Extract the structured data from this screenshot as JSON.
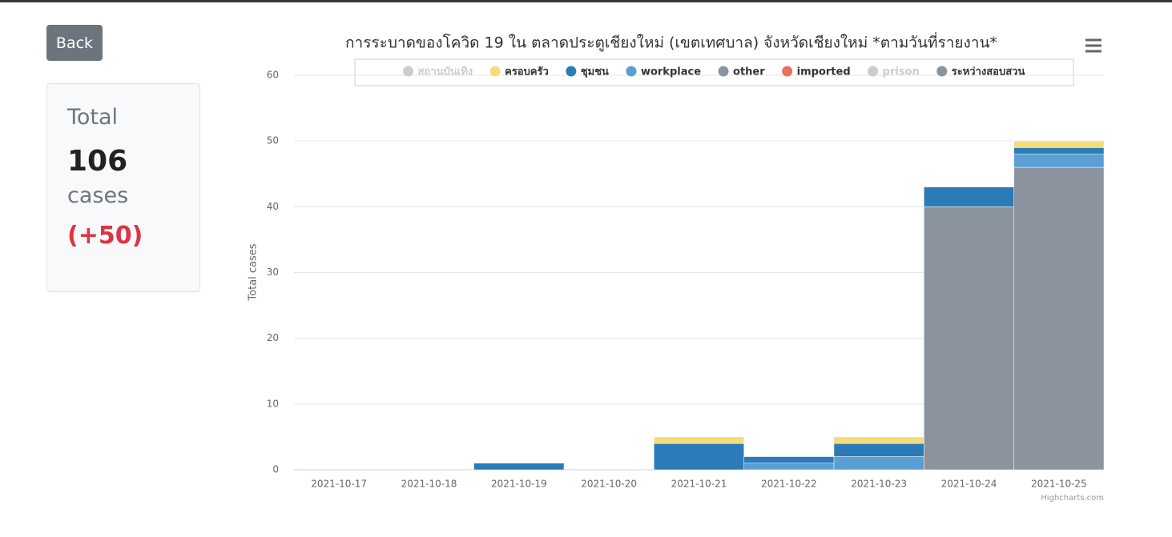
{
  "sidebar": {
    "button": "Back",
    "total_label": "Total",
    "total": "106",
    "unit": "cases",
    "change": "(+50)"
  },
  "chart_data": {
    "type": "stacked-bar",
    "title": "การระบาดของโควิด 19 ใน ตลาดประตูเชียงใหม่ (เขตเทศบาล) จังหวัดเชียงใหม่ *ตามวันที่รายงาน*",
    "y_label": "Total cases",
    "credits": "Highcharts.com",
    "categories": [
      "2021-10-17",
      "2021-10-18",
      "2021-10-19",
      "2021-10-20",
      "2021-10-21",
      "2021-10-22",
      "2021-10-23",
      "2021-10-24",
      "2021-10-25"
    ],
    "series": [
      {
        "name": "สถานบันเทิง",
        "color": "#cccccc",
        "visible": false,
        "values": [
          0,
          0,
          0,
          0,
          0,
          0,
          0,
          0,
          0
        ]
      },
      {
        "name": "ครอบครัว",
        "color": "#f3dc7a",
        "visible": true,
        "values": [
          0,
          0,
          0,
          0,
          1,
          0,
          1,
          0,
          1
        ]
      },
      {
        "name": "ชุมชน",
        "color": "#2b7bb9",
        "visible": true,
        "values": [
          0,
          0,
          1,
          0,
          4,
          1,
          2,
          3,
          1
        ]
      },
      {
        "name": "workplace",
        "color": "#5a9fd4",
        "visible": true,
        "values": [
          0,
          0,
          0,
          0,
          0,
          1,
          2,
          0,
          2
        ]
      },
      {
        "name": "other",
        "color": "#8a939e",
        "visible": true,
        "values": [
          0,
          0,
          0,
          0,
          0,
          0,
          0,
          0,
          0
        ]
      },
      {
        "name": "imported",
        "color": "#e8705f",
        "visible": true,
        "values": [
          0,
          0,
          0,
          0,
          0,
          0,
          0,
          0,
          0
        ]
      },
      {
        "name": "prison",
        "color": "#cccccc",
        "visible": false,
        "values": [
          0,
          0,
          0,
          0,
          0,
          0,
          0,
          0,
          0
        ]
      },
      {
        "name": "ระหว่างสอบสวน",
        "color": "#8a939e",
        "visible": true,
        "values": [
          0,
          0,
          0,
          0,
          0,
          0,
          0,
          40,
          46
        ]
      }
    ],
    "ylim": [
      0,
      60
    ],
    "yticks": [
      0,
      10,
      20,
      30,
      40,
      50,
      60
    ],
    "grid": true
  }
}
